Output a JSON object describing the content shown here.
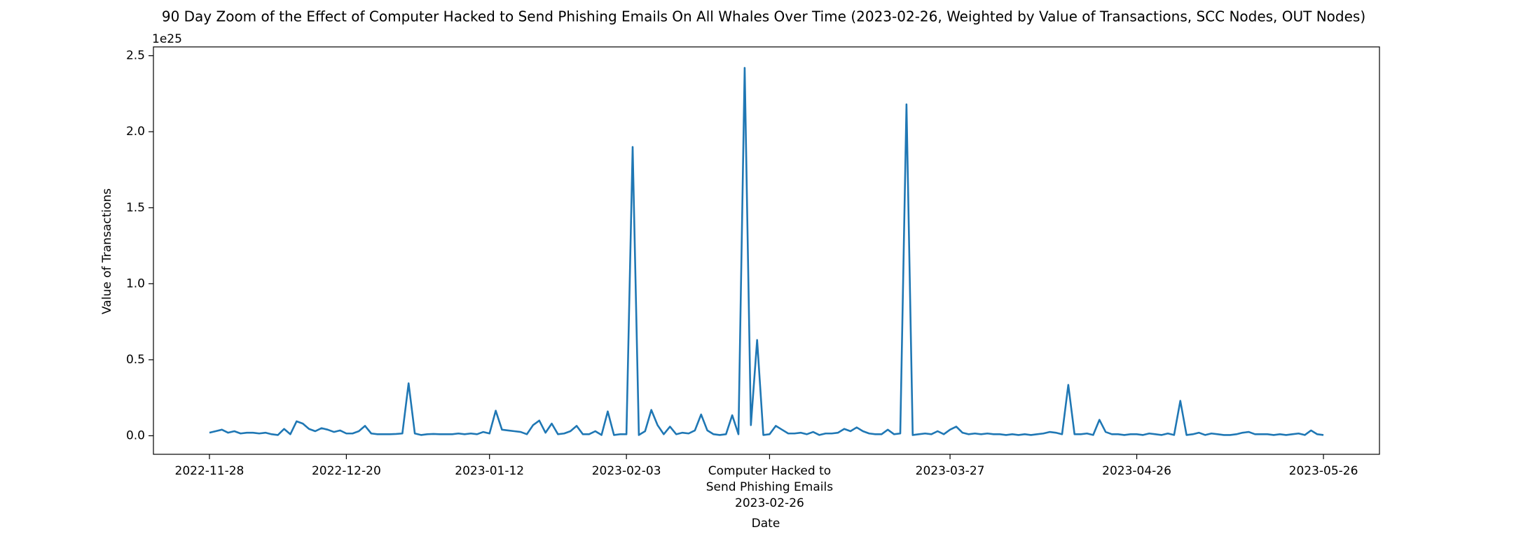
{
  "chart_data": {
    "type": "line",
    "title": "90 Day Zoom of the Effect of Computer Hacked to Send Phishing Emails On All Whales Over Time (2023-02-26, Weighted by Value of Transactions, SCC Nodes, OUT Nodes)",
    "x_label": "Date",
    "y_label": "Value of Transactions",
    "y_offset_label": "1e25",
    "color": "#1f77b4",
    "x": [
      "2022-11-28",
      "2022-11-29",
      "2022-11-30",
      "2022-12-01",
      "2022-12-02",
      "2022-12-03",
      "2022-12-04",
      "2022-12-05",
      "2022-12-06",
      "2022-12-07",
      "2022-12-08",
      "2022-12-09",
      "2022-12-10",
      "2022-12-11",
      "2022-12-12",
      "2022-12-13",
      "2022-12-14",
      "2022-12-15",
      "2022-12-16",
      "2022-12-17",
      "2022-12-18",
      "2022-12-19",
      "2022-12-20",
      "2022-12-21",
      "2022-12-22",
      "2022-12-23",
      "2022-12-24",
      "2022-12-25",
      "2022-12-26",
      "2022-12-27",
      "2022-12-28",
      "2022-12-29",
      "2022-12-30",
      "2022-12-31",
      "2023-01-01",
      "2023-01-02",
      "2023-01-03",
      "2023-01-04",
      "2023-01-05",
      "2023-01-06",
      "2023-01-07",
      "2023-01-08",
      "2023-01-09",
      "2023-01-10",
      "2023-01-11",
      "2023-01-12",
      "2023-01-13",
      "2023-01-14",
      "2023-01-15",
      "2023-01-16",
      "2023-01-17",
      "2023-01-18",
      "2023-01-19",
      "2023-01-20",
      "2023-01-21",
      "2023-01-22",
      "2023-01-23",
      "2023-01-24",
      "2023-01-25",
      "2023-01-26",
      "2023-01-27",
      "2023-01-28",
      "2023-01-29",
      "2023-01-30",
      "2023-01-31",
      "2023-02-01",
      "2023-02-02",
      "2023-02-03",
      "2023-02-04",
      "2023-02-05",
      "2023-02-06",
      "2023-02-07",
      "2023-02-08",
      "2023-02-09",
      "2023-02-10",
      "2023-02-11",
      "2023-02-12",
      "2023-02-13",
      "2023-02-14",
      "2023-02-15",
      "2023-02-16",
      "2023-02-17",
      "2023-02-18",
      "2023-02-19",
      "2023-02-20",
      "2023-02-21",
      "2023-02-22",
      "2023-02-23",
      "2023-02-24",
      "2023-02-25",
      "2023-02-26",
      "2023-02-27",
      "2023-02-28",
      "2023-03-01",
      "2023-03-02",
      "2023-03-03",
      "2023-03-04",
      "2023-03-05",
      "2023-03-06",
      "2023-03-07",
      "2023-03-08",
      "2023-03-09",
      "2023-03-10",
      "2023-03-11",
      "2023-03-12",
      "2023-03-13",
      "2023-03-14",
      "2023-03-15",
      "2023-03-16",
      "2023-03-17",
      "2023-03-18",
      "2023-03-19",
      "2023-03-20",
      "2023-03-21",
      "2023-03-22",
      "2023-03-23",
      "2023-03-24",
      "2023-03-25",
      "2023-03-26",
      "2023-03-27",
      "2023-03-28",
      "2023-03-29",
      "2023-03-30",
      "2023-03-31",
      "2023-04-01",
      "2023-04-02",
      "2023-04-03",
      "2023-04-04",
      "2023-04-05",
      "2023-04-06",
      "2023-04-07",
      "2023-04-08",
      "2023-04-09",
      "2023-04-10",
      "2023-04-11",
      "2023-04-12",
      "2023-04-13",
      "2023-04-14",
      "2023-04-15",
      "2023-04-16",
      "2023-04-17",
      "2023-04-18",
      "2023-04-19",
      "2023-04-20",
      "2023-04-21",
      "2023-04-22",
      "2023-04-23",
      "2023-04-24",
      "2023-04-25",
      "2023-04-26",
      "2023-04-27",
      "2023-04-28",
      "2023-04-29",
      "2023-04-30",
      "2023-05-01",
      "2023-05-02",
      "2023-05-03",
      "2023-05-04",
      "2023-05-05",
      "2023-05-06",
      "2023-05-07",
      "2023-05-08",
      "2023-05-09",
      "2023-05-10",
      "2023-05-11",
      "2023-05-12",
      "2023-05-13",
      "2023-05-14",
      "2023-05-15",
      "2023-05-16",
      "2023-05-17",
      "2023-05-18",
      "2023-05-19",
      "2023-05-20",
      "2023-05-21",
      "2023-05-22",
      "2023-05-23",
      "2023-05-24",
      "2023-05-25",
      "2023-05-26"
    ],
    "values": [
      0.02,
      0.03,
      0.04,
      0.02,
      0.03,
      0.015,
      0.02,
      0.02,
      0.015,
      0.02,
      0.01,
      0.005,
      0.045,
      0.01,
      0.095,
      0.08,
      0.045,
      0.03,
      0.05,
      0.04,
      0.025,
      0.035,
      0.015,
      0.015,
      0.03,
      0.065,
      0.015,
      0.01,
      0.01,
      0.01,
      0.012,
      0.015,
      0.345,
      0.015,
      0.005,
      0.01,
      0.012,
      0.01,
      0.01,
      0.01,
      0.015,
      0.01,
      0.015,
      0.01,
      0.025,
      0.015,
      0.165,
      0.04,
      0.035,
      0.03,
      0.025,
      0.01,
      0.07,
      0.1,
      0.02,
      0.08,
      0.01,
      0.015,
      0.03,
      0.065,
      0.01,
      0.01,
      0.03,
      0.005,
      0.16,
      0.005,
      0.01,
      0.01,
      1.9,
      0.005,
      0.03,
      0.17,
      0.07,
      0.01,
      0.06,
      0.01,
      0.02,
      0.015,
      0.035,
      0.14,
      0.035,
      0.01,
      0.005,
      0.01,
      0.135,
      0.01,
      2.42,
      0.07,
      0.63,
      0.005,
      0.01,
      0.065,
      0.04,
      0.015,
      0.015,
      0.02,
      0.01,
      0.025,
      0.005,
      0.015,
      0.015,
      0.02,
      0.045,
      0.03,
      0.055,
      0.03,
      0.015,
      0.01,
      0.01,
      0.04,
      0.01,
      0.015,
      2.18,
      0.005,
      0.01,
      0.015,
      0.01,
      0.03,
      0.01,
      0.04,
      0.06,
      0.02,
      0.01,
      0.015,
      0.01,
      0.015,
      0.01,
      0.01,
      0.005,
      0.01,
      0.005,
      0.01,
      0.005,
      0.01,
      0.015,
      0.025,
      0.02,
      0.01,
      0.335,
      0.01,
      0.01,
      0.015,
      0.005,
      0.105,
      0.025,
      0.01,
      0.01,
      0.005,
      0.01,
      0.01,
      0.005,
      0.015,
      0.01,
      0.005,
      0.015,
      0.005,
      0.23,
      0.005,
      0.01,
      0.02,
      0.005,
      0.015,
      0.01,
      0.005,
      0.005,
      0.01,
      0.02,
      0.025,
      0.01,
      0.01,
      0.01,
      0.005,
      0.01,
      0.005,
      0.01,
      0.015,
      0.005,
      0.035,
      0.01,
      0.005
    ],
    "xlim": [
      "2022-11-19",
      "2023-06-04"
    ],
    "xticks": [
      "2022-11-28",
      "2022-12-20",
      "2023-01-12",
      "2023-02-03",
      {
        "value": "2023-02-26",
        "label": "Computer Hacked to\nSend Phishing Emails\n2023-02-26"
      },
      "2023-03-27",
      "2023-04-26",
      "2023-05-26"
    ],
    "ylim": [
      -0.122,
      2.558
    ],
    "yticks": [
      {
        "value": 0,
        "label": "0.0"
      },
      0.5,
      {
        "value": 1,
        "label": "1.0"
      },
      1.5,
      {
        "value": 2,
        "label": "2.0"
      },
      2.5
    ],
    "grid": false
  }
}
